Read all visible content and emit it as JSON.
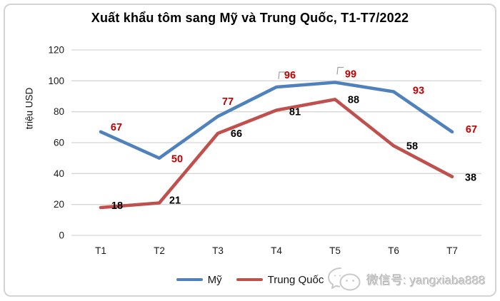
{
  "chart_data": {
    "type": "line",
    "title": "Xuất khẩu tôm sang Mỹ và Trung Quốc, T1-T7/2022",
    "categories": [
      "T1",
      "T2",
      "T3",
      "T4",
      "T5",
      "T6",
      "T7"
    ],
    "series": [
      {
        "name": "Mỹ",
        "color": "#4F81BD",
        "label_color": "#C00000",
        "values": [
          67,
          50,
          77,
          96,
          99,
          93,
          67
        ],
        "label_offsets": [
          [
            22,
            -7
          ],
          [
            25,
            1
          ],
          [
            14,
            -21
          ],
          [
            19,
            -17
          ],
          [
            22,
            -12
          ],
          [
            35,
            -2
          ],
          [
            27,
            -4
          ]
        ]
      },
      {
        "name": "Trung Quốc",
        "color": "#C0504D",
        "label_color": "#000000",
        "values": [
          18,
          21,
          66,
          81,
          88,
          58,
          38
        ],
        "label_offsets": [
          [
            23,
            -3
          ],
          [
            22,
            -4
          ],
          [
            26,
            0
          ],
          [
            26,
            2
          ],
          [
            26,
            0
          ],
          [
            26,
            0
          ],
          [
            26,
            1
          ]
        ]
      }
    ],
    "xlabel": "",
    "ylabel": "triệu USD",
    "ylim": [
      0,
      120
    ],
    "yticks": [
      0,
      20,
      40,
      60,
      80,
      100,
      120
    ],
    "grid": true,
    "data_labels": true,
    "legend_position": "bottom",
    "leader_lines": [
      {
        "series": 0,
        "point": 3
      },
      {
        "series": 0,
        "point": 4
      }
    ],
    "colors": {
      "gridline": "#D7D7D7",
      "axis_text": "#1a1a1a",
      "leader": "#a0a0a0"
    }
  },
  "watermark": {
    "text": "微信号: yangxiaba888",
    "icon": "wechat-chat-bubbles"
  }
}
